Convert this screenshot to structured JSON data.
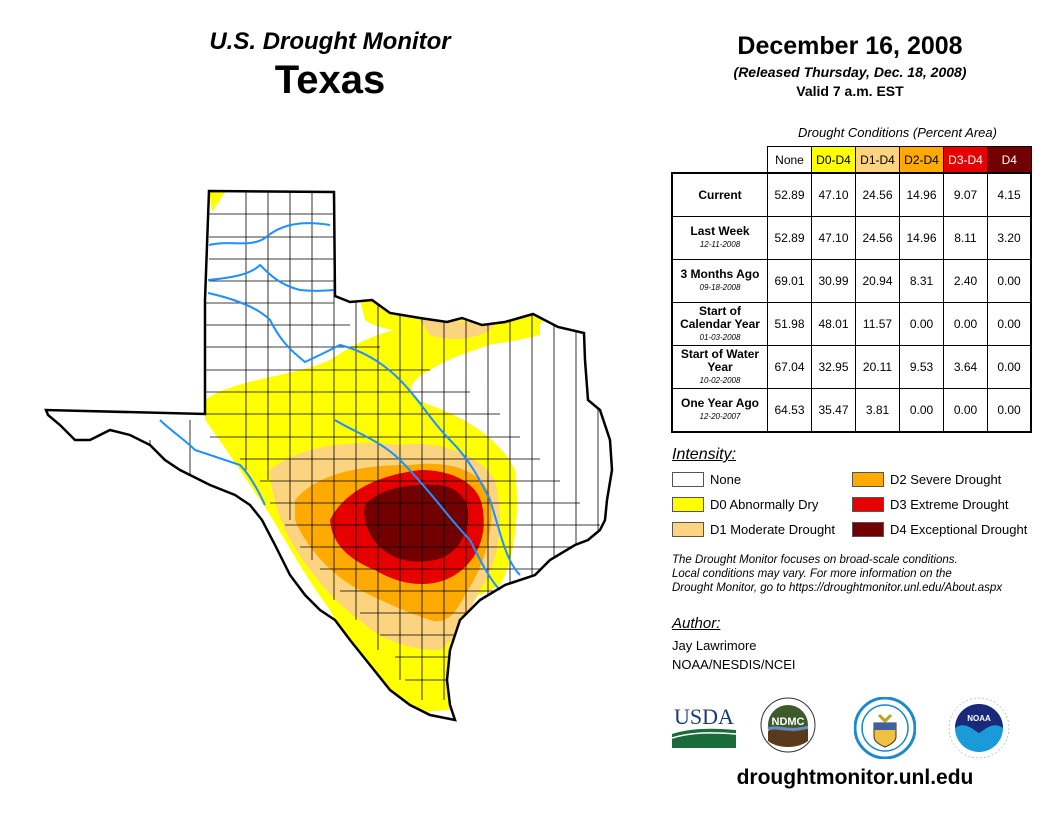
{
  "header": {
    "title": "U.S. Drought Monitor",
    "state": "Texas",
    "date": "December 16, 2008",
    "released": "(Released Thursday, Dec. 18, 2008)",
    "valid": "Valid 7 a.m. EST"
  },
  "table": {
    "caption": "Drought Conditions (Percent Area)",
    "columns": [
      {
        "label": "None",
        "bg": "#ffffff",
        "fg": "#000000"
      },
      {
        "label": "D0-D4",
        "bg": "#ffff00",
        "fg": "#000000"
      },
      {
        "label": "D1-D4",
        "bg": "#fcd37f",
        "fg": "#000000"
      },
      {
        "label": "D2-D4",
        "bg": "#ffaa00",
        "fg": "#000000"
      },
      {
        "label": "D3-D4",
        "bg": "#e60000",
        "fg": "#ffffff"
      },
      {
        "label": "D4",
        "bg": "#730000",
        "fg": "#ffffff"
      }
    ],
    "rows": [
      {
        "label": "Current",
        "date": "",
        "values": [
          "52.89",
          "47.10",
          "24.56",
          "14.96",
          "9.07",
          "4.15"
        ]
      },
      {
        "label": "Last Week",
        "date": "12-11-2008",
        "values": [
          "52.89",
          "47.10",
          "24.56",
          "14.96",
          "8.11",
          "3.20"
        ]
      },
      {
        "label": "3 Months Ago",
        "date": "09-18-2008",
        "values": [
          "69.01",
          "30.99",
          "20.94",
          "8.31",
          "2.40",
          "0.00"
        ]
      },
      {
        "label": "Start of Calendar Year",
        "date": "01-03-2008",
        "values": [
          "51.98",
          "48.01",
          "11.57",
          "0.00",
          "0.00",
          "0.00"
        ]
      },
      {
        "label": "Start of Water Year",
        "date": "10-02-2008",
        "values": [
          "67.04",
          "32.95",
          "20.11",
          "9.53",
          "3.64",
          "0.00"
        ]
      },
      {
        "label": "One Year Ago",
        "date": "12-20-2007",
        "values": [
          "64.53",
          "35.47",
          "3.81",
          "0.00",
          "0.00",
          "0.00"
        ]
      }
    ]
  },
  "legend": {
    "title": "Intensity:",
    "items": [
      {
        "label": "None",
        "color": "#ffffff"
      },
      {
        "label": "D0 Abnormally Dry",
        "color": "#ffff00"
      },
      {
        "label": "D1 Moderate Drought",
        "color": "#fcd37f"
      },
      {
        "label": "D2 Severe Drought",
        "color": "#ffaa00"
      },
      {
        "label": "D3 Extreme Drought",
        "color": "#e60000"
      },
      {
        "label": "D4 Exceptional Drought",
        "color": "#730000"
      }
    ]
  },
  "disclaimer": [
    "The Drought Monitor focuses on broad-scale conditions.",
    "Local conditions may vary. For more information on the",
    "Drought Monitor, go to https://droughtmonitor.unl.edu/About.aspx"
  ],
  "author": {
    "title": "Author:",
    "name": "Jay Lawrimore",
    "org": "NOAA/NESDIS/NCEI"
  },
  "logos": {
    "usda": "USDA",
    "ndmc": "NDMC",
    "doc": "Department of Commerce",
    "noaa": "NOAA"
  },
  "url": "droughtmonitor.unl.edu",
  "map": {
    "region": "Texas",
    "colors": {
      "none": "#ffffff",
      "d0": "#ffff00",
      "d1": "#fcd37f",
      "d2": "#ffaa00",
      "d3": "#e60000",
      "d4": "#730000",
      "river": "#1e90ff",
      "border": "#000000"
    }
  }
}
